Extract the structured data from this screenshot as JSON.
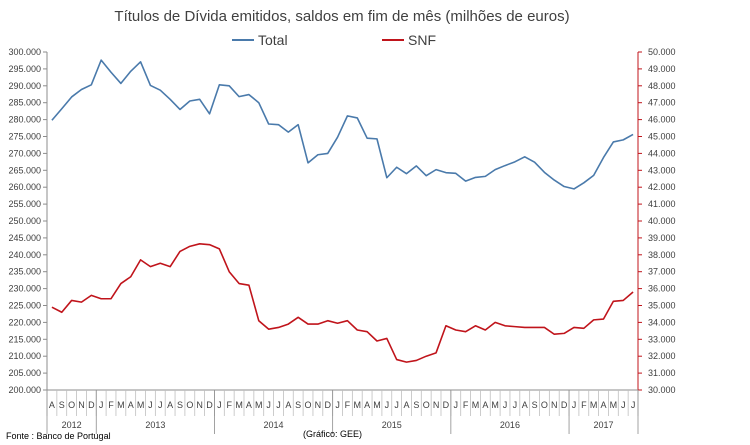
{
  "chart_data": {
    "type": "line",
    "title": "Títulos de Dívida emitidos, saldos em fim de mês  (milhões de euros)",
    "legend": "top-center",
    "series": [
      {
        "name": "Total",
        "axis": "left",
        "color": "#4a7aab",
        "values": [
          279800,
          283200,
          286700,
          288900,
          290300,
          297600,
          294000,
          290700,
          294300,
          297100,
          290100,
          288700,
          286000,
          283000,
          285500,
          286000,
          281700,
          290300,
          290000,
          286800,
          287400,
          285000,
          278700,
          278500,
          276300,
          278500,
          267200,
          269600,
          270000,
          274800,
          281100,
          280500,
          274500,
          274300,
          262800,
          265900,
          264000,
          266300,
          263400,
          265200,
          264300,
          264100,
          261800,
          262900,
          263200,
          265200,
          266400,
          267500,
          269000,
          267400,
          264400,
          262100,
          260200,
          259500,
          261300,
          263500,
          268800,
          273400,
          274000,
          275600
        ]
      },
      {
        "name": "SNF",
        "axis": "right",
        "color": "#c0141b",
        "values": [
          34900,
          34600,
          35300,
          35200,
          35600,
          35400,
          35400,
          36300,
          36700,
          37700,
          37300,
          37500,
          37300,
          38200,
          38500,
          38650,
          38600,
          38350,
          37000,
          36300,
          36200,
          34100,
          33600,
          33700,
          33900,
          34300,
          33900,
          33900,
          34100,
          33950,
          34100,
          33550,
          33450,
          32900,
          33050,
          31800,
          31650,
          31750,
          32000,
          32200,
          33800,
          33550,
          33450,
          33800,
          33550,
          34000,
          33800,
          33750,
          33700,
          33700,
          33700,
          33300,
          33350,
          33700,
          33650,
          34150,
          34200,
          35250,
          35300,
          35800
        ]
      }
    ],
    "x_months": [
      "A",
      "S",
      "O",
      "N",
      "D",
      "J",
      "F",
      "M",
      "A",
      "M",
      "J",
      "J",
      "A",
      "S",
      "O",
      "N",
      "D",
      "J",
      "F",
      "M",
      "A",
      "M",
      "J",
      "J",
      "A",
      "S",
      "O",
      "N",
      "D",
      "J",
      "F",
      "M",
      "A",
      "M",
      "J",
      "J",
      "A",
      "S",
      "O",
      "N",
      "D",
      "J",
      "F",
      "M",
      "A",
      "M",
      "J",
      "J",
      "A",
      "S",
      "O",
      "N",
      "D",
      "J",
      "F",
      "M",
      "A",
      "M",
      "J",
      "J"
    ],
    "x_years": [
      {
        "label": "2012",
        "start": 0,
        "end": 4
      },
      {
        "label": "2013",
        "start": 5,
        "end": 16
      },
      {
        "label": "2014",
        "start": 17,
        "end": 28
      },
      {
        "label": "2015",
        "start": 29,
        "end": 40
      },
      {
        "label": "2016",
        "start": 41,
        "end": 52
      },
      {
        "label": "2017",
        "start": 53,
        "end": 59
      }
    ],
    "y_left": {
      "min": 200000,
      "max": 300000,
      "step": 5000,
      "tick_labels": [
        "200.000",
        "205.000",
        "210.000",
        "215.000",
        "220.000",
        "225.000",
        "230.000",
        "235.000",
        "240.000",
        "245.000",
        "250.000",
        "255.000",
        "260.000",
        "265.000",
        "270.000",
        "275.000",
        "280.000",
        "285.000",
        "290.000",
        "295.000",
        "300.000"
      ]
    },
    "y_right": {
      "min": 30000,
      "max": 50000,
      "step": 1000,
      "tick_labels": [
        "30.000",
        "31.000",
        "32.000",
        "33.000",
        "34.000",
        "35.000",
        "36.000",
        "37.000",
        "38.000",
        "39.000",
        "40.000",
        "41.000",
        "42.000",
        "43.000",
        "44.000",
        "45.000",
        "46.000",
        "47.000",
        "48.000",
        "49.000",
        "50.000"
      ]
    },
    "grid": false
  },
  "footer": {
    "source": "Fonte : Banco de Portugal",
    "credit": "(Gráfico: GEE)"
  }
}
